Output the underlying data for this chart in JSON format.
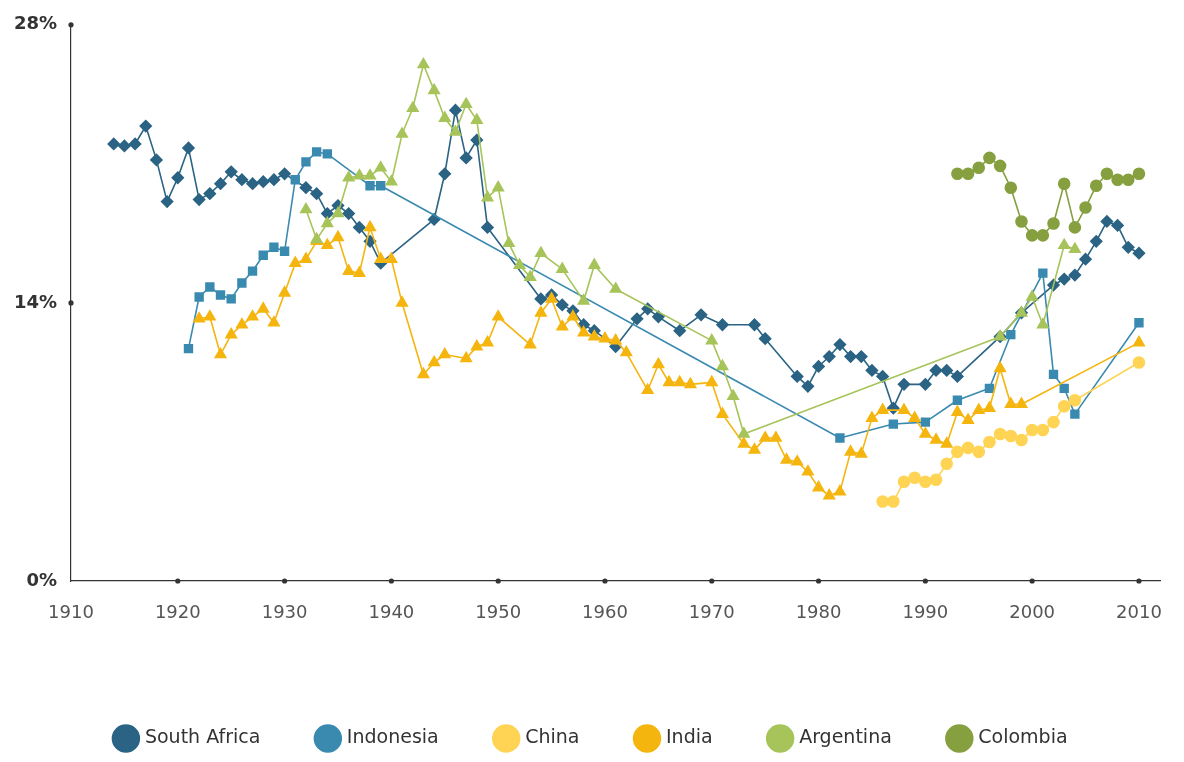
{
  "chart_data": {
    "type": "line",
    "xlim": [
      1910,
      2012
    ],
    "xticks": [
      1910,
      1920,
      1930,
      1940,
      1950,
      1960,
      1970,
      1980,
      1990,
      2000,
      2010
    ],
    "ylim": [
      0,
      28
    ],
    "yticks": [
      {
        "value": 0,
        "label": "0%"
      },
      {
        "value": 14,
        "label": "14%"
      },
      {
        "value": 28,
        "label": "28%"
      }
    ],
    "grid": false,
    "legend": "bottom",
    "line_style": "solid",
    "series": [
      {
        "name": "South Africa",
        "color": "#2a6384",
        "marker": "diamond",
        "x": [
          1914,
          1915,
          1916,
          1917,
          1918,
          1919,
          1920,
          1921,
          1922,
          1923,
          1924,
          1925,
          1926,
          1927,
          1928,
          1929,
          1930,
          1932,
          1933,
          1934,
          1935,
          1936,
          1937,
          1938,
          1939,
          1944,
          1945,
          1946,
          1947,
          1948,
          1949,
          1954,
          1955,
          1956,
          1957,
          1958,
          1959,
          1961,
          1963,
          1964,
          1965,
          1967,
          1969,
          1971,
          1974,
          1975,
          1978,
          1979,
          1980,
          1981,
          1982,
          1983,
          1984,
          1985,
          1986,
          1987,
          1988,
          1990,
          1991,
          1992,
          1993,
          1997,
          1999,
          2002,
          2003,
          2004,
          2005,
          2006,
          2007,
          2008,
          2009,
          2010
        ],
        "values": [
          22.0,
          21.9,
          22.0,
          22.9,
          21.2,
          19.1,
          20.3,
          21.8,
          19.2,
          19.5,
          20.0,
          20.6,
          20.2,
          20.0,
          20.1,
          20.2,
          20.5,
          19.8,
          19.5,
          18.5,
          18.9,
          18.5,
          17.8,
          17.1,
          16.0,
          18.2,
          20.5,
          23.7,
          21.3,
          22.2,
          17.8,
          14.2,
          14.4,
          13.9,
          13.6,
          12.9,
          12.6,
          11.8,
          13.2,
          13.7,
          13.3,
          12.6,
          13.4,
          12.9,
          12.9,
          12.2,
          10.3,
          9.8,
          10.8,
          11.3,
          11.9,
          11.3,
          11.3,
          10.6,
          10.3,
          8.7,
          9.9,
          9.9,
          10.6,
          10.6,
          10.3,
          12.3,
          13.5,
          14.9,
          15.2,
          15.4,
          16.2,
          17.1,
          18.1,
          17.9,
          16.8,
          16.5
        ]
      },
      {
        "name": "Indonesia",
        "color": "#3a8ab0",
        "marker": "square",
        "x": [
          1921,
          1922,
          1923,
          1924,
          1925,
          1926,
          1927,
          1928,
          1929,
          1930,
          1931,
          1932,
          1933,
          1934,
          1938,
          1939,
          1982,
          1987,
          1990,
          1993,
          1996,
          1998,
          2001,
          2002,
          2003,
          2004,
          2010
        ],
        "values": [
          11.7,
          14.3,
          14.8,
          14.4,
          14.2,
          15.0,
          15.6,
          16.4,
          16.8,
          16.6,
          20.2,
          21.1,
          21.6,
          21.5,
          19.9,
          19.9,
          7.2,
          7.9,
          8.0,
          9.1,
          9.7,
          12.4,
          15.5,
          10.4,
          9.7,
          8.4,
          13.0
        ]
      },
      {
        "name": "China",
        "color": "#ffd454",
        "marker": "circle",
        "x": [
          1986,
          1987,
          1988,
          1989,
          1990,
          1991,
          1992,
          1993,
          1994,
          1995,
          1996,
          1997,
          1998,
          1999,
          2000,
          2001,
          2002,
          2003,
          2004,
          2010
        ],
        "values": [
          4.0,
          4.0,
          5.0,
          5.2,
          5.0,
          5.1,
          5.9,
          6.5,
          6.7,
          6.5,
          7.0,
          7.4,
          7.3,
          7.1,
          7.6,
          7.6,
          8.0,
          8.8,
          9.1,
          11.0
        ]
      },
      {
        "name": "India",
        "color": "#f5b50f",
        "marker": "triangle",
        "x": [
          1922,
          1923,
          1924,
          1925,
          1926,
          1927,
          1928,
          1929,
          1930,
          1931,
          1932,
          1933,
          1934,
          1935,
          1936,
          1937,
          1938,
          1939,
          1940,
          1941,
          1943,
          1944,
          1945,
          1947,
          1948,
          1949,
          1950,
          1953,
          1954,
          1955,
          1956,
          1957,
          1958,
          1959,
          1960,
          1961,
          1962,
          1964,
          1965,
          1966,
          1967,
          1968,
          1970,
          1971,
          1973,
          1974,
          1975,
          1976,
          1977,
          1978,
          1979,
          1980,
          1981,
          1982,
          1983,
          1984,
          1985,
          1986,
          1988,
          1989,
          1990,
          1991,
          1992,
          1993,
          1994,
          1995,
          1996,
          1997,
          1998,
          1999,
          2010
        ],
        "values": [
          13.2,
          13.3,
          11.4,
          12.4,
          12.9,
          13.3,
          13.7,
          13.0,
          14.5,
          16.0,
          16.2,
          17.1,
          16.9,
          17.3,
          15.6,
          15.5,
          17.8,
          16.2,
          16.2,
          14.0,
          10.4,
          11.0,
          11.4,
          11.2,
          11.8,
          12.0,
          13.3,
          11.9,
          13.5,
          14.2,
          12.8,
          13.3,
          12.5,
          12.3,
          12.2,
          12.1,
          11.5,
          9.6,
          10.9,
          10.0,
          10.0,
          9.9,
          10.0,
          8.4,
          6.9,
          6.6,
          7.2,
          7.2,
          6.1,
          6.0,
          5.5,
          4.7,
          4.3,
          4.5,
          6.5,
          6.4,
          8.2,
          8.6,
          8.6,
          8.2,
          7.4,
          7.1,
          6.9,
          8.5,
          8.1,
          8.6,
          8.7,
          10.7,
          8.9,
          8.9,
          12.0
        ]
      },
      {
        "name": "Argentina",
        "color": "#a7c45a",
        "marker": "triangle",
        "x": [
          1932,
          1933,
          1934,
          1935,
          1936,
          1937,
          1938,
          1939,
          1940,
          1941,
          1942,
          1943,
          1944,
          1945,
          1946,
          1947,
          1948,
          1949,
          1950,
          1951,
          1952,
          1953,
          1954,
          1956,
          1958,
          1959,
          1961,
          1970,
          1971,
          1972,
          1973,
          1997,
          1999,
          2000,
          2001,
          2003,
          2004
        ],
        "values": [
          18.7,
          17.2,
          18.0,
          18.5,
          20.3,
          20.4,
          20.4,
          20.8,
          20.1,
          22.5,
          23.8,
          26.0,
          24.7,
          23.3,
          22.6,
          24.0,
          23.2,
          19.3,
          19.8,
          17.0,
          15.9,
          15.3,
          16.5,
          15.7,
          14.1,
          15.9,
          14.7,
          12.1,
          10.8,
          9.3,
          7.4,
          12.3,
          13.5,
          14.3,
          12.9,
          16.9,
          16.7
        ]
      },
      {
        "name": "Colombia",
        "color": "#86a040",
        "marker": "circle",
        "x": [
          1993,
          1994,
          1995,
          1996,
          1997,
          1998,
          1999,
          2000,
          2001,
          2002,
          2003,
          2004,
          2005,
          2006,
          2007,
          2008,
          2009,
          2010
        ],
        "values": [
          20.5,
          20.5,
          20.8,
          21.3,
          20.9,
          19.8,
          18.1,
          17.4,
          17.4,
          18.0,
          20.0,
          17.8,
          18.8,
          19.9,
          20.5,
          20.2,
          20.2,
          20.5
        ]
      }
    ]
  }
}
